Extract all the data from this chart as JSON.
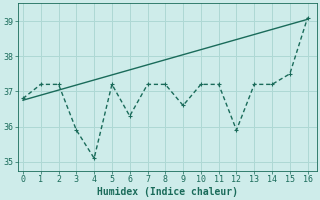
{
  "x": [
    0,
    1,
    2,
    3,
    4,
    5,
    6,
    7,
    8,
    9,
    10,
    11,
    12,
    13,
    14,
    15,
    16
  ],
  "y": [
    36.8,
    37.2,
    37.2,
    35.9,
    35.1,
    37.2,
    36.3,
    37.2,
    37.2,
    36.6,
    37.2,
    37.2,
    35.9,
    37.2,
    37.2,
    37.5,
    39.1
  ],
  "trend_x": [
    0,
    16
  ],
  "trend_y": [
    36.75,
    39.05
  ],
  "line_color": "#1a6b5a",
  "bg_color": "#ceecea",
  "grid_color": "#aed8d4",
  "xlabel": "Humidex (Indice chaleur)",
  "ylim": [
    34.75,
    39.5
  ],
  "yticks": [
    35,
    36,
    37,
    38,
    39
  ],
  "xticks": [
    0,
    1,
    2,
    3,
    4,
    5,
    6,
    7,
    8,
    9,
    10,
    11,
    12,
    13,
    14,
    15,
    16
  ],
  "xlim": [
    -0.3,
    16.5
  ],
  "marker_size": 2.5,
  "line_width": 1.0
}
